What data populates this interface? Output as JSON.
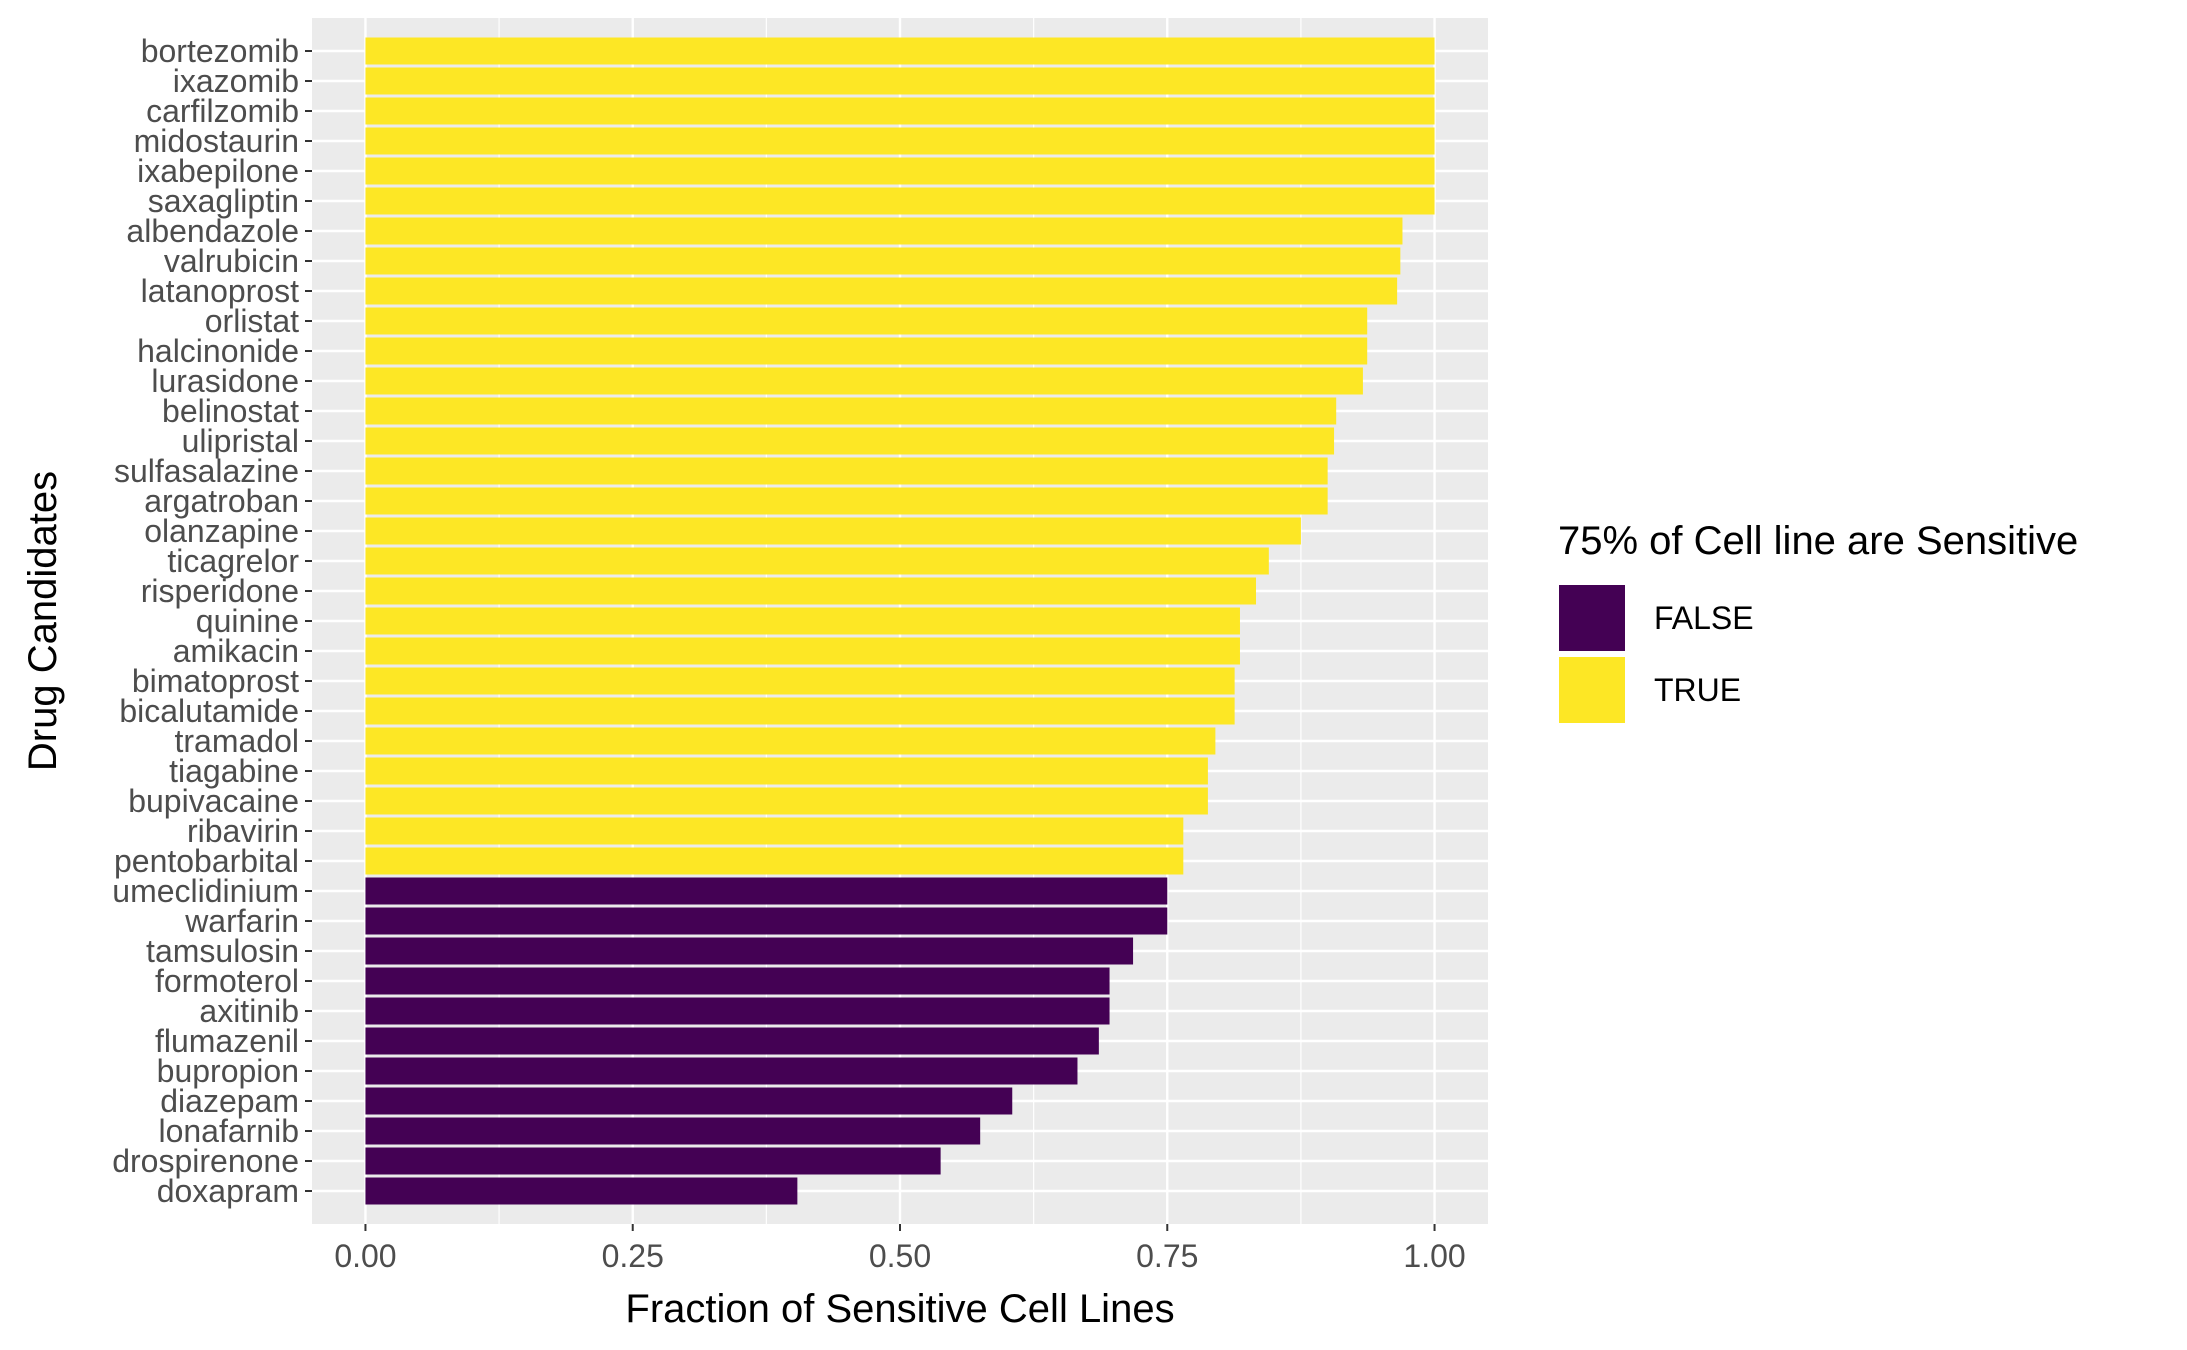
{
  "chart_data": {
    "type": "bar",
    "orientation": "horizontal",
    "xlabel": "Fraction of Sensitive Cell Lines",
    "ylabel": "Drug Candidates",
    "xlim": [
      -0.05,
      1.05
    ],
    "x_ticks": [
      0.0,
      0.25,
      0.5,
      0.75,
      1.0
    ],
    "x_tick_labels": [
      "0.00",
      "0.25",
      "0.50",
      "0.75",
      "1.00"
    ],
    "grid": true,
    "legend_position": "right",
    "legend": {
      "title": "75% of Cell line are Sensitive",
      "entries": [
        {
          "label": "FALSE",
          "color": "#440154"
        },
        {
          "label": "TRUE",
          "color": "#FDE725"
        }
      ]
    },
    "colors": {
      "panel": "#EBEBEB",
      "grid": "#FFFFFF",
      "tick": "#333333"
    },
    "categories": [
      "bortezomib",
      "ixazomib",
      "carfilzomib",
      "midostaurin",
      "ixabepilone",
      "saxagliptin",
      "albendazole",
      "valrubicin",
      "latanoprost",
      "orlistat",
      "halcinonide",
      "lurasidone",
      "belinostat",
      "ulipristal",
      "sulfasalazine",
      "argatroban",
      "olanzapine",
      "ticagrelor",
      "risperidone",
      "quinine",
      "amikacin",
      "bimatoprost",
      "bicalutamide",
      "tramadol",
      "tiagabine",
      "bupivacaine",
      "ribavirin",
      "pentobarbital",
      "umeclidinium",
      "warfarin",
      "tamsulosin",
      "formoterol",
      "axitinib",
      "flumazenil",
      "bupropion",
      "diazepam",
      "lonafarnib",
      "drospirenone",
      "doxapram"
    ],
    "values": [
      1.0,
      1.0,
      1.0,
      1.0,
      1.0,
      1.0,
      0.97,
      0.968,
      0.965,
      0.937,
      0.937,
      0.933,
      0.908,
      0.906,
      0.9,
      0.9,
      0.875,
      0.845,
      0.833,
      0.818,
      0.818,
      0.813,
      0.813,
      0.795,
      0.788,
      0.788,
      0.765,
      0.765,
      0.75,
      0.75,
      0.718,
      0.696,
      0.696,
      0.686,
      0.666,
      0.605,
      0.575,
      0.538,
      0.404
    ],
    "sensitive": [
      "TRUE",
      "TRUE",
      "TRUE",
      "TRUE",
      "TRUE",
      "TRUE",
      "TRUE",
      "TRUE",
      "TRUE",
      "TRUE",
      "TRUE",
      "TRUE",
      "TRUE",
      "TRUE",
      "TRUE",
      "TRUE",
      "TRUE",
      "TRUE",
      "TRUE",
      "TRUE",
      "TRUE",
      "TRUE",
      "TRUE",
      "TRUE",
      "TRUE",
      "TRUE",
      "TRUE",
      "TRUE",
      "FALSE",
      "FALSE",
      "FALSE",
      "FALSE",
      "FALSE",
      "FALSE",
      "FALSE",
      "FALSE",
      "FALSE",
      "FALSE",
      "FALSE"
    ]
  }
}
